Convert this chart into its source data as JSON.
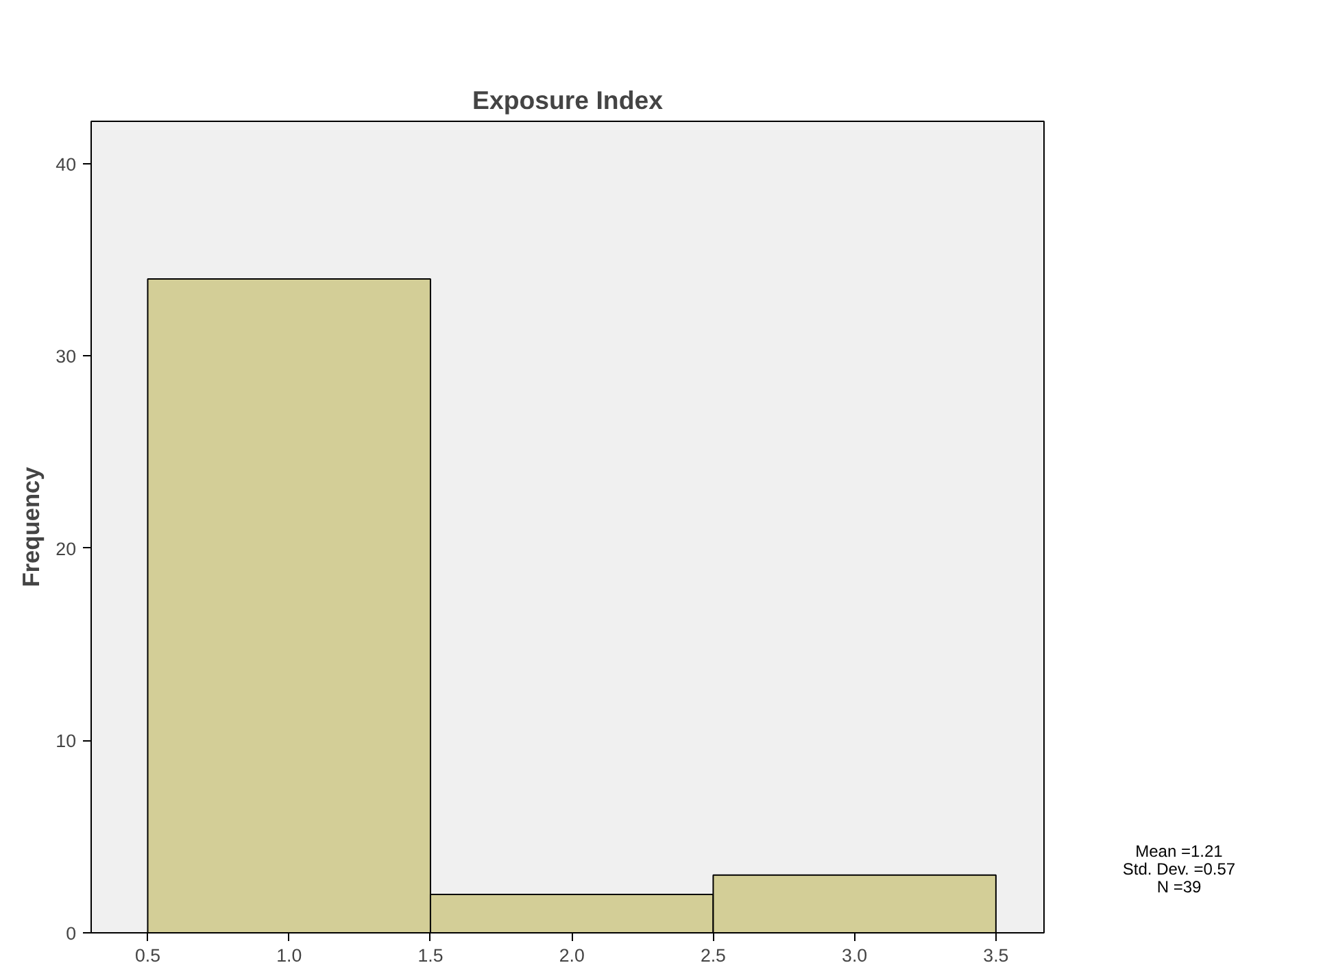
{
  "chart_data": {
    "type": "histogram",
    "title": "Exposure Index",
    "ylabel": "Frequency",
    "bins": [
      0.5,
      1.5,
      2.5,
      3.5
    ],
    "values": [
      34,
      2,
      3
    ],
    "color": "#d3ce97",
    "xlim": [
      0.3,
      3.67
    ],
    "ylim": [
      0,
      42.2
    ],
    "xticks": [
      {
        "value": 0.5,
        "label": "0.5"
      },
      {
        "value": 1.0,
        "label": "1.0"
      },
      {
        "value": 1.5,
        "label": "1.5"
      },
      {
        "value": 2.0,
        "label": "2.0"
      },
      {
        "value": 2.5,
        "label": "2.5"
      },
      {
        "value": 3.0,
        "label": "3.0"
      },
      {
        "value": 3.5,
        "label": "3.5"
      }
    ],
    "yticks": [
      0,
      10,
      20,
      30,
      40
    ],
    "grid": false,
    "annotations": [
      "Mean =1.21",
      "Std. Dev. =0.57",
      "N =39"
    ]
  }
}
